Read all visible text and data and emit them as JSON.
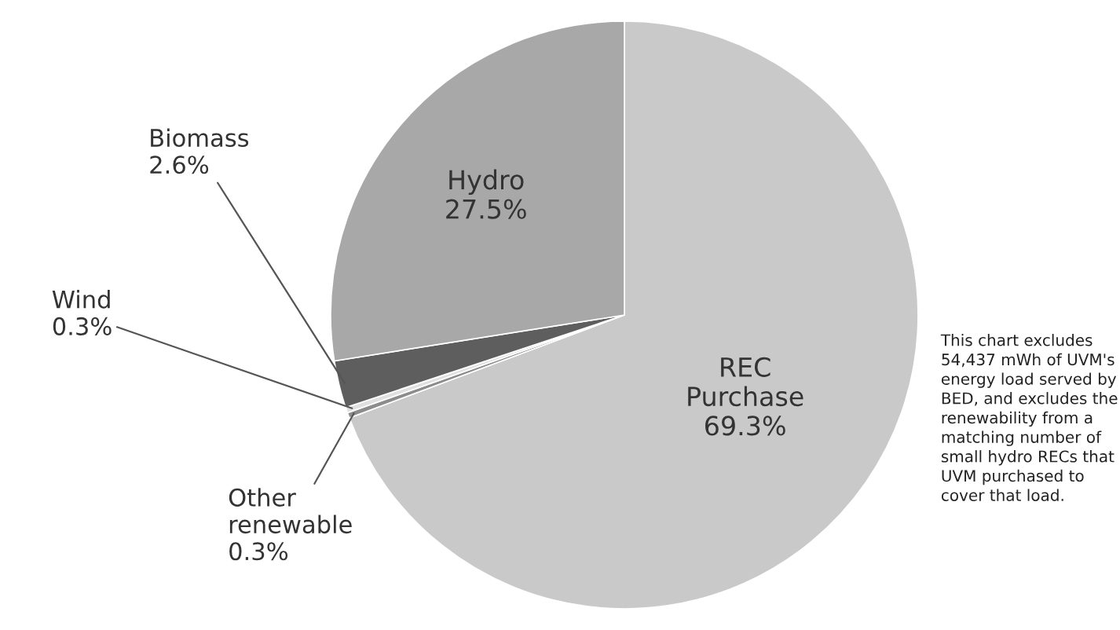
{
  "chart_data": {
    "type": "pie",
    "categories": [
      "REC Purchase",
      "Other renewable",
      "Wind",
      "Biomass",
      "Hydro"
    ],
    "values": [
      69.3,
      0.3,
      0.3,
      2.6,
      27.5
    ],
    "colors": [
      "#c9c9c9",
      "#8c8c8c",
      "#e0e0e0",
      "#5e5e5e",
      "#a8a8a8"
    ],
    "value_labels": [
      "69.3%",
      "0.3%",
      "0.3%",
      "2.6%",
      "27.5%"
    ],
    "annotations": [
      "This chart excludes 54,437 mWh of UVM's energy load served by BED, and excludes the renewability from a matching number of small hydro RECs that UVM purchased to cover that load."
    ]
  }
}
